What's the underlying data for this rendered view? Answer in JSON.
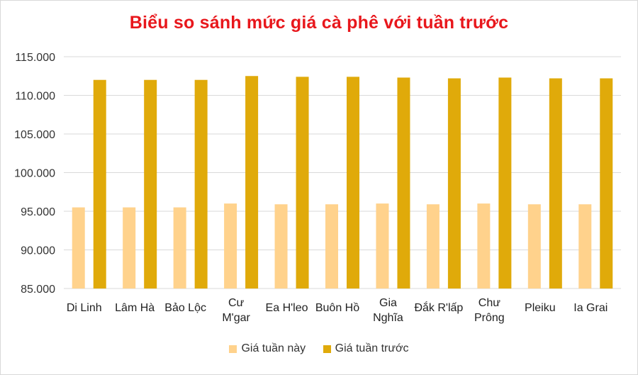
{
  "chart_data": {
    "type": "bar",
    "title": "Biểu so sánh mức giá cà phê với tuần trước",
    "categories": [
      [
        "Di Linh"
      ],
      [
        "Lâm Hà"
      ],
      [
        "Bảo Lộc"
      ],
      [
        "Cư",
        "M'gar"
      ],
      [
        "Ea H'leo"
      ],
      [
        "Buôn Hồ"
      ],
      [
        "Gia",
        "Nghĩa"
      ],
      [
        "Đắk R'lấp"
      ],
      [
        "Chư",
        "Prông"
      ],
      [
        "Pleiku"
      ],
      [
        "Ia Grai"
      ]
    ],
    "series": [
      {
        "name": "Giá tuần này",
        "color": "#ffd28c",
        "values": [
          95500,
          95500,
          95500,
          96000,
          95900,
          95900,
          96000,
          95900,
          96000,
          95900,
          95900
        ]
      },
      {
        "name": "Giá tuần trước",
        "color": "#e0aa0a",
        "values": [
          112000,
          112000,
          112000,
          112500,
          112400,
          112400,
          112300,
          112200,
          112300,
          112200,
          112200
        ]
      }
    ],
    "ylim": [
      85000,
      115000
    ],
    "yticks": [
      85000,
      90000,
      95000,
      100000,
      105000,
      110000,
      115000
    ],
    "ytick_labels": [
      "85.000",
      "90.000",
      "95.000",
      "100.000",
      "105.000",
      "110.000",
      "115.000"
    ],
    "grid": true,
    "legend_position": "bottom"
  }
}
